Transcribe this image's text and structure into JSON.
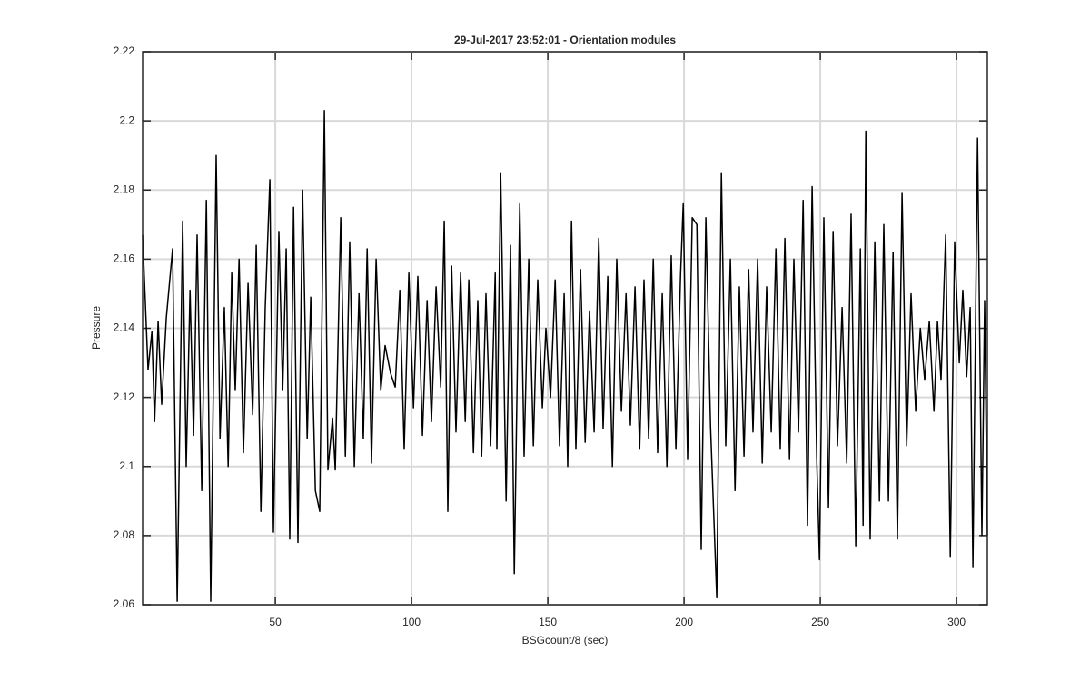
{
  "chart_data": {
    "type": "line",
    "title": "29-Jul-2017 23:52:01 - Orientation modules",
    "xlabel": "BSGcount/8 (sec)",
    "ylabel": "Pressure",
    "color": "#000000",
    "grid": true,
    "xlim": [
      1.3,
      311.3
    ],
    "ylim": [
      2.06,
      2.22
    ],
    "xticks": [
      50,
      100,
      150,
      200,
      250,
      300
    ],
    "yticks": [
      2.06,
      2.08,
      2.1,
      2.12,
      2.14,
      2.16,
      2.18,
      2.2,
      2.22
    ],
    "x": [
      1.3,
      3.3,
      4.7,
      5.7,
      7,
      8.3,
      10,
      12.3,
      14,
      16,
      17.3,
      18.7,
      20,
      21.3,
      23,
      24.7,
      26.3,
      28.3,
      29.7,
      31.3,
      32.7,
      34,
      35.3,
      36.7,
      38.3,
      40,
      41.7,
      43,
      44.7,
      46.3,
      48,
      49.3,
      51.3,
      52.7,
      54,
      55.3,
      56.7,
      58.3,
      60,
      61.7,
      63,
      64.7,
      66.3,
      68,
      69.3,
      71,
      72,
      74,
      75.7,
      77.3,
      79,
      80.7,
      82.3,
      83.7,
      85.3,
      87,
      88.7,
      90.3,
      92.3,
      94,
      95.7,
      97.3,
      99,
      100.7,
      102.3,
      104,
      105.7,
      107.3,
      109,
      110.7,
      112,
      113.3,
      114.7,
      116.3,
      118,
      119.7,
      121,
      122.7,
      124.3,
      125.7,
      127.3,
      129,
      130.7,
      131.3,
      132.7,
      134.7,
      136.3,
      137.7,
      139.7,
      141.3,
      143,
      144.7,
      146.3,
      148,
      149.3,
      151,
      152.7,
      154.3,
      156,
      157.3,
      158.7,
      160.3,
      162,
      163.7,
      165.3,
      167,
      168.7,
      170.3,
      172,
      173.7,
      175.3,
      177,
      178.7,
      180.3,
      182,
      183.7,
      185.3,
      187,
      188.7,
      190.3,
      192,
      193.7,
      195.3,
      197,
      198.7,
      199.7,
      201.3,
      203,
      204.7,
      206.3,
      208,
      209.7,
      212,
      213.7,
      215.3,
      217,
      218.7,
      220.3,
      222,
      223.7,
      225.3,
      227,
      228.7,
      230.3,
      232,
      233.7,
      235.3,
      237,
      238.7,
      240.3,
      242,
      243.7,
      245.3,
      247,
      248.7,
      249.7,
      251.3,
      253,
      254.7,
      256.3,
      258,
      259.7,
      261.3,
      263,
      264.7,
      265.7,
      266.7,
      268.3,
      270,
      271.7,
      273.3,
      275,
      276.7,
      278.3,
      280,
      281.7,
      283.3,
      285,
      286.7,
      288.3,
      290,
      291.7,
      293,
      294.3,
      296,
      297.7,
      299.3,
      301,
      302.3,
      303.7,
      305,
      306,
      307.7,
      309.3,
      310.3,
      311.3
    ],
    "values": [
      2.167,
      2.128,
      2.139,
      2.113,
      2.142,
      2.118,
      2.143,
      2.163,
      2.061,
      2.171,
      2.1,
      2.151,
      2.109,
      2.167,
      2.093,
      2.177,
      2.061,
      2.19,
      2.108,
      2.146,
      2.1,
      2.156,
      2.122,
      2.16,
      2.104,
      2.153,
      2.115,
      2.164,
      2.087,
      2.146,
      2.183,
      2.081,
      2.168,
      2.122,
      2.163,
      2.079,
      2.175,
      2.078,
      2.18,
      2.108,
      2.149,
      2.093,
      2.087,
      2.203,
      2.099,
      2.114,
      2.099,
      2.172,
      2.103,
      2.165,
      2.1,
      2.15,
      2.108,
      2.163,
      2.101,
      2.16,
      2.122,
      2.135,
      2.127,
      2.123,
      2.151,
      2.105,
      2.156,
      2.117,
      2.155,
      2.109,
      2.148,
      2.113,
      2.152,
      2.123,
      2.171,
      2.087,
      2.158,
      2.11,
      2.156,
      2.113,
      2.154,
      2.104,
      2.148,
      2.103,
      2.15,
      2.106,
      2.156,
      2.105,
      2.185,
      2.09,
      2.164,
      2.069,
      2.176,
      2.103,
      2.16,
      2.106,
      2.154,
      2.117,
      2.14,
      2.12,
      2.154,
      2.106,
      2.15,
      2.1,
      2.171,
      2.105,
      2.157,
      2.107,
      2.145,
      2.11,
      2.166,
      2.111,
      2.155,
      2.1,
      2.16,
      2.116,
      2.15,
      2.112,
      2.152,
      2.105,
      2.154,
      2.108,
      2.16,
      2.104,
      2.15,
      2.1,
      2.161,
      2.105,
      2.155,
      2.176,
      2.102,
      2.172,
      2.17,
      2.076,
      2.172,
      2.112,
      2.062,
      2.185,
      2.106,
      2.16,
      2.093,
      2.152,
      2.103,
      2.157,
      2.11,
      2.16,
      2.101,
      2.152,
      2.11,
      2.163,
      2.105,
      2.166,
      2.102,
      2.16,
      2.11,
      2.177,
      2.083,
      2.181,
      2.102,
      2.073,
      2.172,
      2.088,
      2.168,
      2.106,
      2.146,
      2.101,
      2.173,
      2.077,
      2.163,
      2.083,
      2.197,
      2.079,
      2.165,
      2.09,
      2.17,
      2.09,
      2.162,
      2.079,
      2.179,
      2.106,
      2.15,
      2.116,
      2.14,
      2.125,
      2.142,
      2.116,
      2.142,
      2.125,
      2.167,
      2.074,
      2.165,
      2.13,
      2.151,
      2.126,
      2.146,
      2.071,
      2.195,
      2.08,
      2.148,
      2.08
    ]
  }
}
